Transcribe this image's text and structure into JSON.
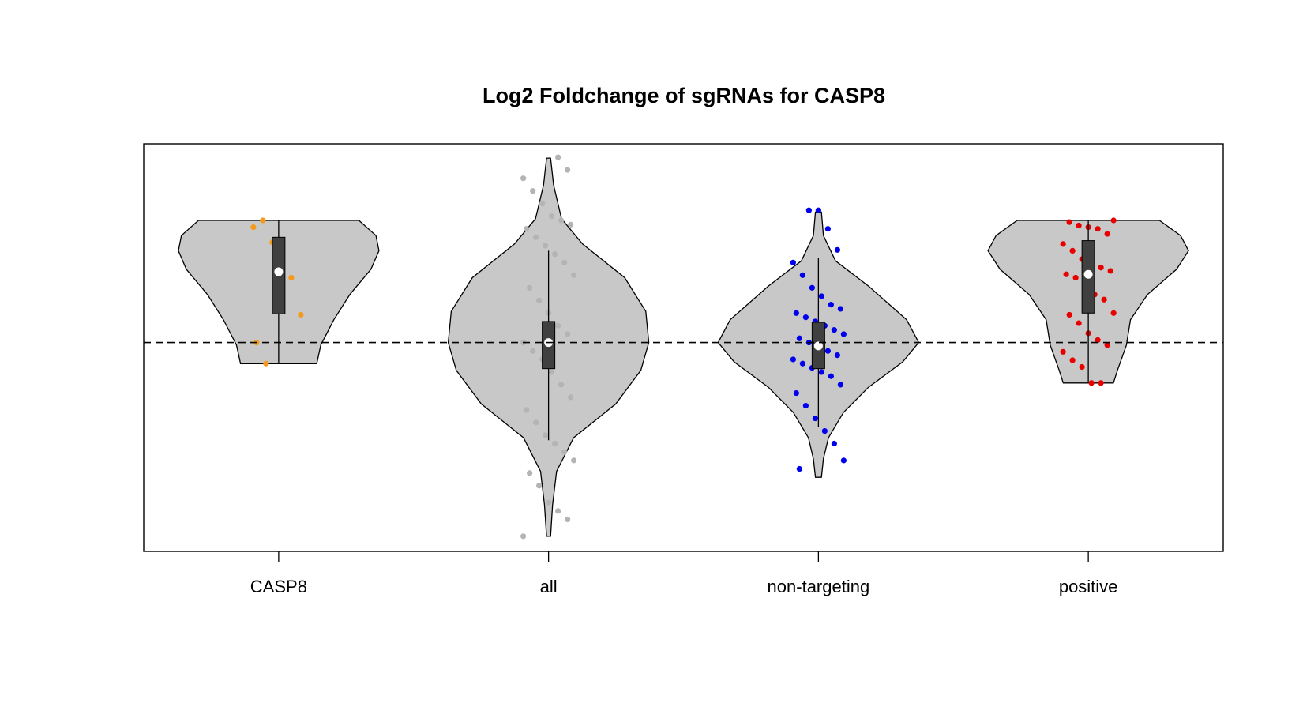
{
  "chart_data": {
    "type": "violin",
    "title": "Log2 Foldchange of sgRNAs for CASP8",
    "categories": [
      "CASP8",
      "all",
      "non-targeting",
      "positive"
    ],
    "ylim": [
      -4.96,
      4.72
    ],
    "hline": 0,
    "fill": "#c8c8c8",
    "box_color": "#404040",
    "groups": [
      {
        "color": "#f59a1b",
        "levels": [
          2.9,
          2.54,
          2.18,
          1.74,
          1.14,
          0.54,
          -0.06,
          -0.5
        ],
        "widths": [
          0.8,
          0.97,
          1,
          0.92,
          0.71,
          0.55,
          0.42,
          0.38
        ],
        "box": [
          -0.5,
          0.68,
          1.68,
          2.5,
          2.9
        ],
        "points": [
          2.74,
          2.9,
          2.38,
          1.82,
          1.54,
          0.66,
          0,
          -0.5
        ]
      },
      {
        "color": "#b4b4b4",
        "levels": [
          4.38,
          3.74,
          2.94,
          2.34,
          1.54,
          0.74,
          0,
          -0.66,
          -1.46,
          -2.26,
          -3.06,
          -3.86,
          -4.6
        ],
        "widths": [
          0.02,
          0.05,
          0.13,
          0.34,
          0.76,
          0.97,
          1,
          0.92,
          0.67,
          0.25,
          0.08,
          0.04,
          0.02
        ],
        "box": [
          -2.32,
          -0.62,
          0,
          0.5,
          2.18
        ],
        "points": [
          4.4,
          4.1,
          3.9,
          3.6,
          3.3,
          3.0,
          2.9,
          2.8,
          2.7,
          2.5,
          2.3,
          2.1,
          1.9,
          1.6,
          1.3,
          1.0,
          0.7,
          0.4,
          0.2,
          0,
          -0.2,
          -0.4,
          -0.7,
          -1.0,
          -1.3,
          -1.6,
          -1.9,
          -2.2,
          -2.4,
          -2.6,
          -2.8,
          -3.1,
          -3.4,
          -3.8,
          -4.0,
          -4.2,
          -4.6
        ]
      },
      {
        "color": "#0000ee",
        "levels": [
          3.1,
          2.54,
          1.94,
          1.34,
          0.54,
          0,
          -0.46,
          -1.06,
          -1.66,
          -2.26,
          -2.76,
          -3.2
        ],
        "widths": [
          0.03,
          0.05,
          0.17,
          0.5,
          0.88,
          1,
          0.84,
          0.5,
          0.25,
          0.1,
          0.05,
          0.03
        ],
        "box": [
          -2.0,
          -0.62,
          -0.08,
          0.48,
          2.0
        ],
        "points": [
          3.14,
          3.14,
          2.7,
          2.2,
          1.9,
          1.6,
          1.3,
          1.1,
          0.9,
          0.8,
          0.7,
          0.6,
          0.5,
          0.4,
          0.3,
          0.2,
          0.1,
          0,
          -0.1,
          -0.2,
          -0.3,
          -0.4,
          -0.5,
          -0.6,
          -0.7,
          -0.8,
          -1.0,
          -1.2,
          -1.5,
          -1.8,
          -2.1,
          -2.4,
          -2.8,
          -3.0
        ]
      },
      {
        "color": "#e80000",
        "levels": [
          2.9,
          2.54,
          2.18,
          1.74,
          1.14,
          0.54,
          -0.06,
          -0.66,
          -0.96
        ],
        "widths": [
          0.71,
          0.92,
          1,
          0.88,
          0.59,
          0.42,
          0.38,
          0.29,
          0.25
        ],
        "box": [
          -0.96,
          0.7,
          1.62,
          2.42,
          2.9
        ],
        "points": [
          2.9,
          2.86,
          2.78,
          2.74,
          2.7,
          2.58,
          2.34,
          2.18,
          1.98,
          1.9,
          1.78,
          1.7,
          1.62,
          1.54,
          1.42,
          1.14,
          1.02,
          0.7,
          0.66,
          0.46,
          0.22,
          0.06,
          -0.06,
          -0.22,
          -0.42,
          -0.58,
          -0.96,
          -0.96
        ]
      }
    ]
  }
}
